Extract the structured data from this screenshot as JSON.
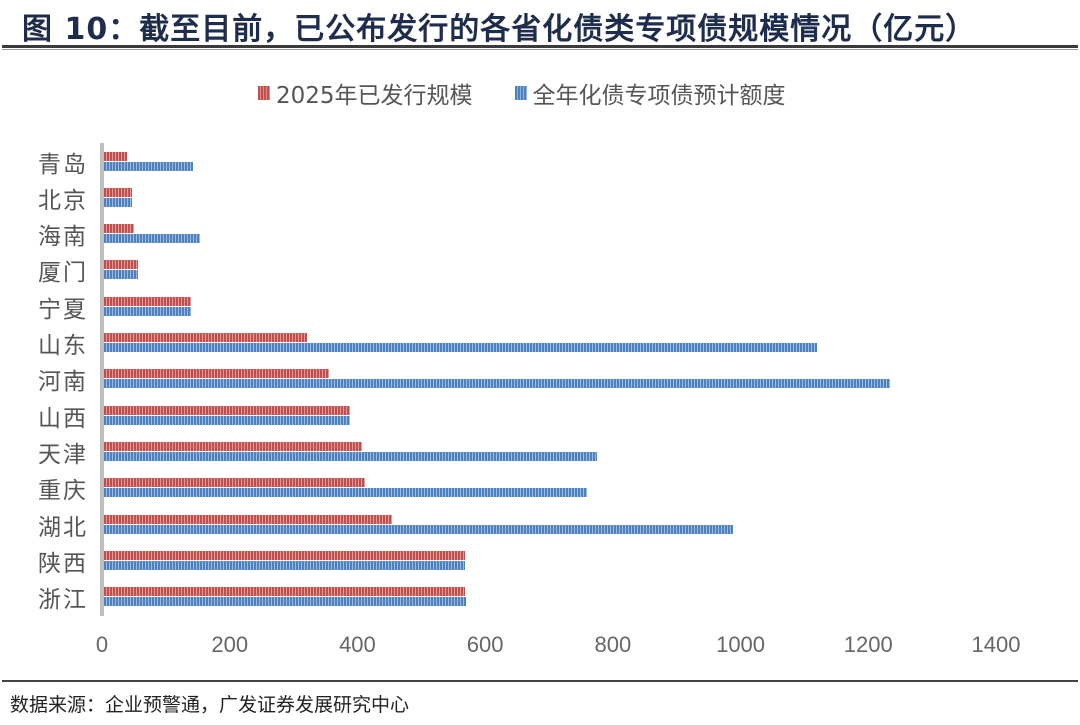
{
  "figure": {
    "title": "图 10：截至目前，已公布发行的各省化债类专项债规模情况（亿元）",
    "source": "数据来源：企业预警通，广发证券发展研究中心"
  },
  "legend": {
    "items": [
      {
        "label": "2025年已发行规模",
        "color": "#c0504d"
      },
      {
        "label": "全年化债专项债预计额度",
        "color": "#4f81bd"
      }
    ]
  },
  "axis": {
    "x_ticks": [
      "0",
      "200",
      "400",
      "600",
      "800",
      "1000",
      "1200",
      "1400"
    ]
  },
  "chart_data": {
    "type": "bar",
    "orientation": "horizontal",
    "title": "截至目前，已公布发行的各省化债类专项债规模情况（亿元）",
    "xlabel": "",
    "ylabel": "",
    "xlim": [
      0,
      1400
    ],
    "x_ticks": [
      0,
      200,
      400,
      600,
      800,
      1000,
      1200,
      1400
    ],
    "grid": false,
    "legend_position": "top",
    "categories": [
      "青岛",
      "北京",
      "海南",
      "厦门",
      "宁夏",
      "山东",
      "河南",
      "山西",
      "天津",
      "重庆",
      "湖北",
      "陕西",
      "浙江"
    ],
    "series": [
      {
        "name": "2025年已发行规模",
        "color": "#c0504d",
        "values": [
          36,
          44,
          47,
          53,
          136,
          318,
          352,
          385,
          404,
          409,
          451,
          565,
          565
        ]
      },
      {
        "name": "全年化债专项债预计额度",
        "color": "#4f81bd",
        "values": [
          139,
          44,
          150,
          53,
          136,
          1117,
          1231,
          385,
          772,
          756,
          985,
          565,
          567
        ]
      }
    ]
  }
}
